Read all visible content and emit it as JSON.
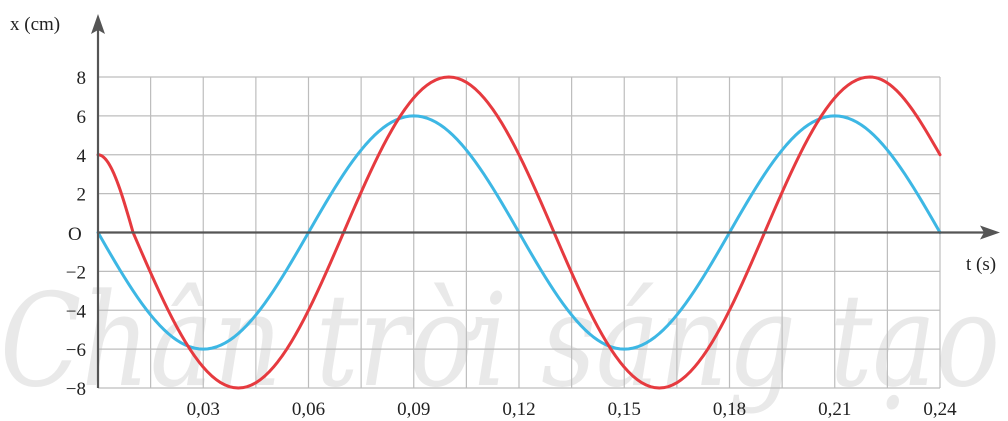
{
  "chart_data": {
    "type": "line",
    "title": "",
    "xlabel": "t (s)",
    "ylabel": "x (cm)",
    "origin_label": "O",
    "watermark": "Chân trời sáng tạo",
    "xlim": [
      0,
      0.24
    ],
    "ylim": [
      -8,
      8
    ],
    "x_ticks": [
      0.03,
      0.06,
      0.09,
      0.12,
      0.15,
      0.18,
      0.21,
      0.24
    ],
    "x_tick_labels": [
      "0,03",
      "0,06",
      "0,09",
      "0,12",
      "0,15",
      "0,18",
      "0,21",
      "0,24"
    ],
    "y_ticks": [
      8,
      6,
      4,
      2,
      -2,
      -4,
      -6,
      -8
    ],
    "y_tick_labels": [
      "8",
      "6",
      "4",
      "2",
      "−2",
      "−4",
      "−6",
      "−8"
    ],
    "grid": true,
    "colors": {
      "grid": "#bdbdbd",
      "axis": "#555555"
    },
    "series": [
      {
        "color": "#3db7e4",
        "points": [
          [
            0,
            0
          ],
          [
            0.03,
            -6
          ],
          [
            0.06,
            0
          ],
          [
            0.09,
            6
          ],
          [
            0.12,
            0
          ],
          [
            0.15,
            -6
          ],
          [
            0.18,
            0
          ],
          [
            0.21,
            6
          ],
          [
            0.24,
            0
          ]
        ]
      },
      {
        "color": "#e63a3f",
        "points": [
          [
            0,
            4
          ],
          [
            0.01,
            0
          ],
          [
            0.04,
            -8
          ],
          [
            0.07,
            0
          ],
          [
            0.1,
            8
          ],
          [
            0.13,
            0
          ],
          [
            0.16,
            -8
          ],
          [
            0.19,
            0
          ],
          [
            0.22,
            8
          ],
          [
            0.24,
            4
          ]
        ]
      }
    ]
  }
}
